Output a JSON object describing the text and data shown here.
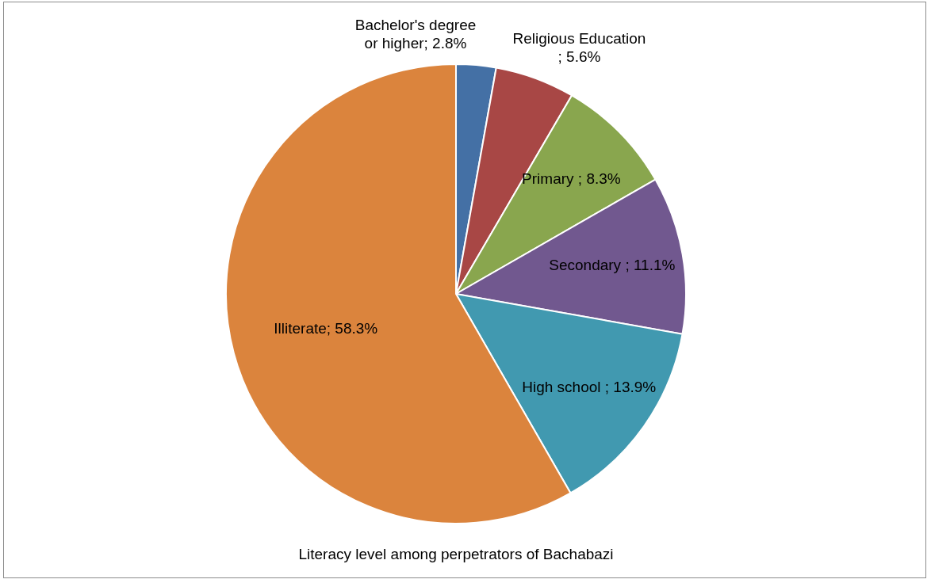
{
  "chart_data": {
    "type": "pie",
    "title": "Literacy level among perpetrators of Bachabazi",
    "categories": [
      "Bachelor's degree or higher",
      "Religious Education ",
      "Primary ",
      "Secondary ",
      "High school ",
      "Illiterate"
    ],
    "values": [
      2.8,
      5.6,
      8.3,
      11.1,
      13.9,
      58.3
    ],
    "colors": [
      "#4470a5",
      "#a84745",
      "#89a64e",
      "#71588f",
      "#4199b0",
      "#db843d"
    ],
    "value_labels": [
      "; 2.8%",
      "; 5.6%",
      "; 8.3%",
      "; 11.1%",
      "; 13.9%",
      "; 58.3%"
    ],
    "legend": false
  }
}
